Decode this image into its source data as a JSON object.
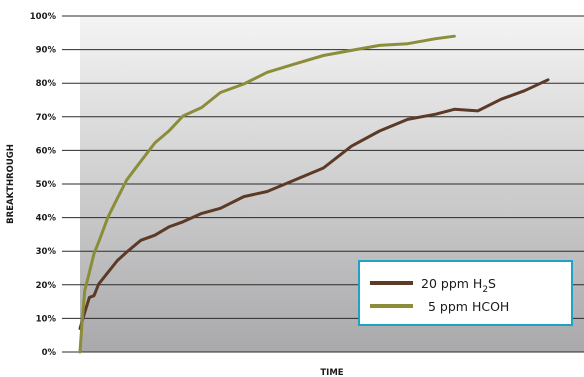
{
  "chart_data": {
    "type": "line",
    "title": "",
    "xlabel": "TIME",
    "ylabel": "BREAKTHROUGH",
    "ylim": [
      0,
      100
    ],
    "y_ticks": [
      "0%",
      "10%",
      "20%",
      "30%",
      "40%",
      "50%",
      "60%",
      "70%",
      "80%",
      "90%",
      "100%"
    ],
    "grid": true,
    "legend_position": "bottom-right",
    "background_gradient": [
      "#f4f4f4",
      "#a9a9ab"
    ],
    "series": [
      {
        "name": "20 ppm H2S",
        "label_main": "20 ppm H",
        "label_sub": "2",
        "label_tail": "S",
        "color": "#5c3a26",
        "x": [
          0,
          1,
          2,
          3,
          4,
          6,
          8,
          10,
          13,
          16,
          19,
          22,
          26,
          30,
          35,
          40,
          46,
          52,
          58,
          64,
          70,
          76,
          80,
          85,
          90,
          95,
          100
        ],
        "y": [
          7,
          12,
          16,
          17,
          20,
          24,
          27,
          30,
          33,
          35,
          37,
          39,
          41,
          43,
          46,
          48,
          51,
          55,
          61,
          66,
          69,
          71,
          72,
          72,
          75,
          78,
          81
        ]
      },
      {
        "name": "5 ppm HCOH",
        "label_main": "5 ppm HCOH",
        "label_sub": "",
        "label_tail": "",
        "color": "#8c8d3a",
        "x": [
          0,
          0.5,
          1,
          2,
          3,
          4,
          6,
          8,
          10,
          13,
          16,
          19,
          22,
          26,
          30,
          35,
          40,
          46,
          52,
          58,
          64,
          70,
          76,
          80
        ],
        "y": [
          0,
          10,
          18,
          24,
          29,
          33,
          40,
          46,
          51,
          57,
          62,
          66,
          70,
          73,
          77,
          80,
          83,
          86,
          88,
          90,
          91,
          92,
          93,
          94
        ]
      }
    ]
  }
}
